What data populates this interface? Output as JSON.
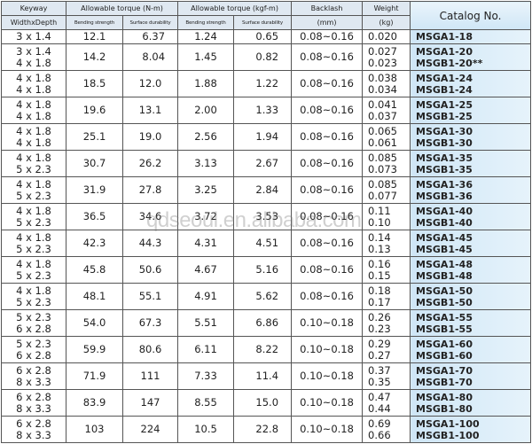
{
  "headers": {
    "keyway": "Keyway",
    "keyway_sub": "WidthxDepth",
    "torque_nm": "Allowable torque (N-m)",
    "torque_kgf": "Allowable torque (kgf-m)",
    "bending": "Bending strength",
    "surface": "Surface durability",
    "backlash": "Backlash",
    "backlash_unit": "(mm)",
    "weight": "Weight",
    "weight_unit": "(kg)",
    "catalog": "Catalog No."
  },
  "rows": [
    {
      "keyway": [
        "3 x 1.4"
      ],
      "bn": "12.1",
      "sn": "6.37",
      "bk": "1.24",
      "sk": "0.65",
      "backlash": "0.08~0.16",
      "weight": [
        "0.020"
      ],
      "catalog": [
        "MSGA1-18"
      ]
    },
    {
      "keyway": [
        "3 x 1.4",
        "4 x 1.8"
      ],
      "bn": "14.2",
      "sn": "8.04",
      "bk": "1.45",
      "sk": "0.82",
      "backlash": "0.08~0.16",
      "weight": [
        "0.027",
        "0.023"
      ],
      "catalog": [
        "MSGA1-20",
        "MSGB1-20**"
      ]
    },
    {
      "keyway": [
        "4 x 1.8",
        "4 x 1.8"
      ],
      "bn": "18.5",
      "sn": "12.0",
      "bk": "1.88",
      "sk": "1.22",
      "backlash": "0.08~0.16",
      "weight": [
        "0.038",
        "0.034"
      ],
      "catalog": [
        "MSGA1-24",
        "MSGB1-24"
      ]
    },
    {
      "keyway": [
        "4 x 1.8",
        "4 x 1.8"
      ],
      "bn": "19.6",
      "sn": "13.1",
      "bk": "2.00",
      "sk": "1.33",
      "backlash": "0.08~0.16",
      "weight": [
        "0.041",
        "0.037"
      ],
      "catalog": [
        "MSGA1-25",
        "MSGB1-25"
      ]
    },
    {
      "keyway": [
        "4 x 1.8",
        "4 x 1.8"
      ],
      "bn": "25.1",
      "sn": "19.0",
      "bk": "2.56",
      "sk": "1.94",
      "backlash": "0.08~0.16",
      "weight": [
        "0.065",
        "0.061"
      ],
      "catalog": [
        "MSGA1-30",
        "MSGB1-30"
      ]
    },
    {
      "keyway": [
        "4 x 1.8",
        "5 x 2.3"
      ],
      "bn": "30.7",
      "sn": "26.2",
      "bk": "3.13",
      "sk": "2.67",
      "backlash": "0.08~0.16",
      "weight": [
        "0.085",
        "0.073"
      ],
      "catalog": [
        "MSGA1-35",
        "MSGB1-35"
      ]
    },
    {
      "keyway": [
        "4 x 1.8",
        "5 x 2.3"
      ],
      "bn": "31.9",
      "sn": "27.8",
      "bk": "3.25",
      "sk": "2.84",
      "backlash": "0.08~0.16",
      "weight": [
        "0.085",
        "0.077"
      ],
      "catalog": [
        "MSGA1-36",
        "MSGB1-36"
      ]
    },
    {
      "keyway": [
        "4 x 1.8",
        "5 x 2.3"
      ],
      "bn": "36.5",
      "sn": "34.6",
      "bk": "3.72",
      "sk": "3.53",
      "backlash": "0.08~0.16",
      "weight": [
        "0.11",
        "0.10"
      ],
      "catalog": [
        "MSGA1-40",
        "MSGB1-40"
      ]
    },
    {
      "keyway": [
        "4 x 1.8",
        "5 x 2.3"
      ],
      "bn": "42.3",
      "sn": "44.3",
      "bk": "4.31",
      "sk": "4.51",
      "backlash": "0.08~0.16",
      "weight": [
        "0.14",
        "0.13"
      ],
      "catalog": [
        "MSGA1-45",
        "MSGB1-45"
      ]
    },
    {
      "keyway": [
        "4 x 1.8",
        "5 x 2.3"
      ],
      "bn": "45.8",
      "sn": "50.6",
      "bk": "4.67",
      "sk": "5.16",
      "backlash": "0.08~0.16",
      "weight": [
        "0.16",
        "0.15"
      ],
      "catalog": [
        "MSGA1-48",
        "MSGB1-48"
      ]
    },
    {
      "keyway": [
        "4 x 1.8",
        "5 x 2.3"
      ],
      "bn": "48.1",
      "sn": "55.1",
      "bk": "4.91",
      "sk": "5.62",
      "backlash": "0.08~0.16",
      "weight": [
        "0.18",
        "0.17"
      ],
      "catalog": [
        "MSGA1-50",
        "MSGB1-50"
      ]
    },
    {
      "keyway": [
        "5 x 2.3",
        "6 x 2.8"
      ],
      "bn": "54.0",
      "sn": "67.3",
      "bk": "5.51",
      "sk": "6.86",
      "backlash": "0.10~0.18",
      "weight": [
        "0.26",
        "0.23"
      ],
      "catalog": [
        "MSGA1-55",
        "MSGB1-55"
      ]
    },
    {
      "keyway": [
        "5 x 2.3",
        "6 x 2.8"
      ],
      "bn": "59.9",
      "sn": "80.6",
      "bk": "6.11",
      "sk": "8.22",
      "backlash": "0.10~0.18",
      "weight": [
        "0.29",
        "0.27"
      ],
      "catalog": [
        "MSGA1-60",
        "MSGB1-60"
      ]
    },
    {
      "keyway": [
        "6 x 2.8",
        "8 x 3.3"
      ],
      "bn": "71.9",
      "sn": "111",
      "bk": "7.33",
      "sk": "11.4",
      "backlash": "0.10~0.18",
      "weight": [
        "0.37",
        "0.35"
      ],
      "catalog": [
        "MSGA1-70",
        "MSGB1-70"
      ]
    },
    {
      "keyway": [
        "6 x 2.8",
        "8 x 3.3"
      ],
      "bn": "83.9",
      "sn": "147",
      "bk": "8.55",
      "sk": "15.0",
      "backlash": "0.10~0.18",
      "weight": [
        "0.47",
        "0.44"
      ],
      "catalog": [
        "MSGA1-80",
        "MSGB1-80"
      ]
    },
    {
      "keyway": [
        "6 x 2.8",
        "8 x 3.3"
      ],
      "bn": "103",
      "sn": "224",
      "bk": "10.5",
      "sk": "22.8",
      "backlash": "0.10~0.18",
      "weight": [
        "0.69",
        "0.66"
      ],
      "catalog": [
        "MSGA1-100",
        "MSGB1-100"
      ]
    }
  ],
  "watermark": "qdseoul.en.alibaba.com",
  "colors": {
    "header_bg": "#dfe8f1",
    "catalog_bg": "#cfe6f6",
    "border": "#555555"
  }
}
